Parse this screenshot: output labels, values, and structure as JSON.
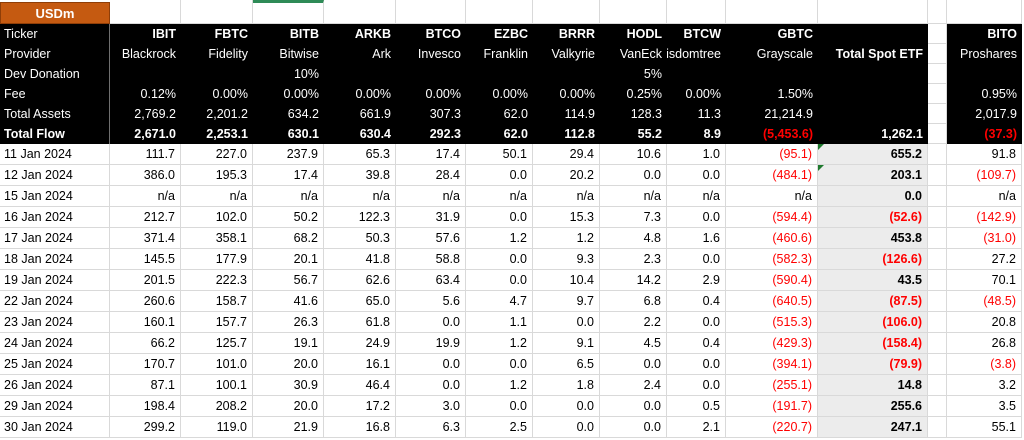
{
  "sheet": {
    "unit_label": "USDm",
    "header": {
      "row_labels": [
        "Ticker",
        "Provider",
        "Dev Donation",
        "Fee",
        "Total Assets",
        "Total Flow"
      ],
      "row_keys": [
        "ticker",
        "provider",
        "dev_donation",
        "fee",
        "total_assets",
        "total_flow"
      ]
    },
    "columns": [
      {
        "id": "ibit",
        "ticker": "IBIT",
        "provider": "Blackrock",
        "dev_donation": "",
        "fee": "0.12%",
        "total_assets": "2,769.2",
        "total_flow": "2,671.0"
      },
      {
        "id": "fbtc",
        "ticker": "FBTC",
        "provider": "Fidelity",
        "dev_donation": "",
        "fee": "0.00%",
        "total_assets": "2,201.2",
        "total_flow": "2,253.1"
      },
      {
        "id": "bitb",
        "ticker": "BITB",
        "provider": "Bitwise",
        "dev_donation": "10%",
        "fee": "0.00%",
        "total_assets": "634.2",
        "total_flow": "630.1",
        "top_green_bar": true
      },
      {
        "id": "arkb",
        "ticker": "ARKB",
        "provider": "Ark",
        "dev_donation": "",
        "fee": "0.00%",
        "total_assets": "661.9",
        "total_flow": "630.4"
      },
      {
        "id": "btco",
        "ticker": "BTCO",
        "provider": "Invesco",
        "dev_donation": "",
        "fee": "0.00%",
        "total_assets": "307.3",
        "total_flow": "292.3"
      },
      {
        "id": "ezbc",
        "ticker": "EZBC",
        "provider": "Franklin",
        "dev_donation": "",
        "fee": "0.00%",
        "total_assets": "62.0",
        "total_flow": "62.0"
      },
      {
        "id": "brrr",
        "ticker": "BRRR",
        "provider": "Valkyrie",
        "dev_donation": "",
        "fee": "0.00%",
        "total_assets": "114.9",
        "total_flow": "112.8"
      },
      {
        "id": "hodl",
        "ticker": "HODL",
        "provider": "VanEck",
        "dev_donation": "5%",
        "fee": "0.25%",
        "total_assets": "128.3",
        "total_flow": "55.2"
      },
      {
        "id": "btcw",
        "ticker": "BTCW",
        "provider": "Wisdomtree",
        "dev_donation": "",
        "fee": "0.00%",
        "total_assets": "11.3",
        "total_flow": "8.9"
      },
      {
        "id": "gbtc",
        "ticker": "GBTC",
        "provider": "Grayscale",
        "dev_donation": "",
        "fee": "1.50%",
        "total_assets": "21,214.9",
        "total_flow": "(5,453.6)"
      },
      {
        "id": "total",
        "type": "total",
        "ticker": "",
        "provider": "Total Spot ETF",
        "dev_donation": "",
        "fee": "",
        "total_assets": "",
        "total_flow": "1,262.1"
      },
      {
        "id": "gap",
        "type": "gap"
      },
      {
        "id": "bito",
        "ticker": "BITO",
        "provider": "Proshares",
        "dev_donation": "",
        "fee": "0.95%",
        "total_assets": "2,017.9",
        "total_flow": "(37.3)"
      }
    ],
    "rows": [
      {
        "date": "11 Jan 2024",
        "values": [
          "111.7",
          "227.0",
          "237.9",
          "65.3",
          "17.4",
          "50.1",
          "29.4",
          "10.6",
          "1.0",
          "(95.1)",
          "655.2",
          "91.8"
        ],
        "total_indicator": true
      },
      {
        "date": "12 Jan 2024",
        "values": [
          "386.0",
          "195.3",
          "17.4",
          "39.8",
          "28.4",
          "0.0",
          "20.2",
          "0.0",
          "0.0",
          "(484.1)",
          "203.1",
          "(109.7)"
        ],
        "total_indicator": true
      },
      {
        "date": "15 Jan 2024",
        "values": [
          "n/a",
          "n/a",
          "n/a",
          "n/a",
          "n/a",
          "n/a",
          "n/a",
          "n/a",
          "n/a",
          "n/a",
          "0.0",
          "n/a"
        ],
        "total_indicator": false
      },
      {
        "date": "16 Jan 2024",
        "values": [
          "212.7",
          "102.0",
          "50.2",
          "122.3",
          "31.9",
          "0.0",
          "15.3",
          "7.3",
          "0.0",
          "(594.4)",
          "(52.6)",
          "(142.9)"
        ],
        "total_indicator": false
      },
      {
        "date": "17 Jan 2024",
        "values": [
          "371.4",
          "358.1",
          "68.2",
          "50.3",
          "57.6",
          "1.2",
          "1.2",
          "4.8",
          "1.6",
          "(460.6)",
          "453.8",
          "(31.0)"
        ],
        "total_indicator": false
      },
      {
        "date": "18 Jan 2024",
        "values": [
          "145.5",
          "177.9",
          "20.1",
          "41.8",
          "58.8",
          "0.0",
          "9.3",
          "2.3",
          "0.0",
          "(582.3)",
          "(126.6)",
          "27.2"
        ],
        "total_indicator": false
      },
      {
        "date": "19 Jan 2024",
        "values": [
          "201.5",
          "222.3",
          "56.7",
          "62.6",
          "63.4",
          "0.0",
          "10.4",
          "14.2",
          "2.9",
          "(590.4)",
          "43.5",
          "70.1"
        ],
        "total_indicator": false
      },
      {
        "date": "22 Jan 2024",
        "values": [
          "260.6",
          "158.7",
          "41.6",
          "65.0",
          "5.6",
          "4.7",
          "9.7",
          "6.8",
          "0.4",
          "(640.5)",
          "(87.5)",
          "(48.5)"
        ],
        "total_indicator": false
      },
      {
        "date": "23 Jan 2024",
        "values": [
          "160.1",
          "157.7",
          "26.3",
          "61.8",
          "0.0",
          "1.1",
          "0.0",
          "2.2",
          "0.0",
          "(515.3)",
          "(106.0)",
          "20.8"
        ],
        "total_indicator": false
      },
      {
        "date": "24 Jan 2024",
        "values": [
          "66.2",
          "125.7",
          "19.1",
          "24.9",
          "19.9",
          "1.2",
          "9.1",
          "4.5",
          "0.4",
          "(429.3)",
          "(158.4)",
          "26.8"
        ],
        "total_indicator": false
      },
      {
        "date": "25 Jan 2024",
        "values": [
          "170.7",
          "101.0",
          "20.0",
          "16.1",
          "0.0",
          "0.0",
          "6.5",
          "0.0",
          "0.0",
          "(394.1)",
          "(79.9)",
          "(3.8)"
        ],
        "total_indicator": false
      },
      {
        "date": "26 Jan 2024",
        "values": [
          "87.1",
          "100.1",
          "30.9",
          "46.4",
          "0.0",
          "1.2",
          "1.8",
          "2.4",
          "0.0",
          "(255.1)",
          "14.8",
          "3.2"
        ],
        "total_indicator": false
      },
      {
        "date": "29 Jan 2024",
        "values": [
          "198.4",
          "208.2",
          "20.0",
          "17.2",
          "3.0",
          "0.0",
          "0.0",
          "0.0",
          "0.5",
          "(191.7)",
          "255.6",
          "3.5"
        ],
        "total_indicator": false
      },
      {
        "date": "30 Jan 2024",
        "values": [
          "299.2",
          "119.0",
          "21.9",
          "16.8",
          "6.3",
          "2.5",
          "0.0",
          "0.0",
          "2.1",
          "(220.7)",
          "247.1",
          "55.1"
        ],
        "total_indicator": false
      }
    ]
  },
  "colors": {
    "header_bg": "#000000",
    "header_text": "#ffffff",
    "gridline": "#d9d9d9",
    "total_column_bg": "#ececec",
    "negative_red": "#ff0000",
    "negative_red_on_black": "#ff1f1f",
    "unit_box_orange": "#c55a11",
    "green_bar": "#2e8b57",
    "comment_indicator_green": "#1f7a2e"
  }
}
